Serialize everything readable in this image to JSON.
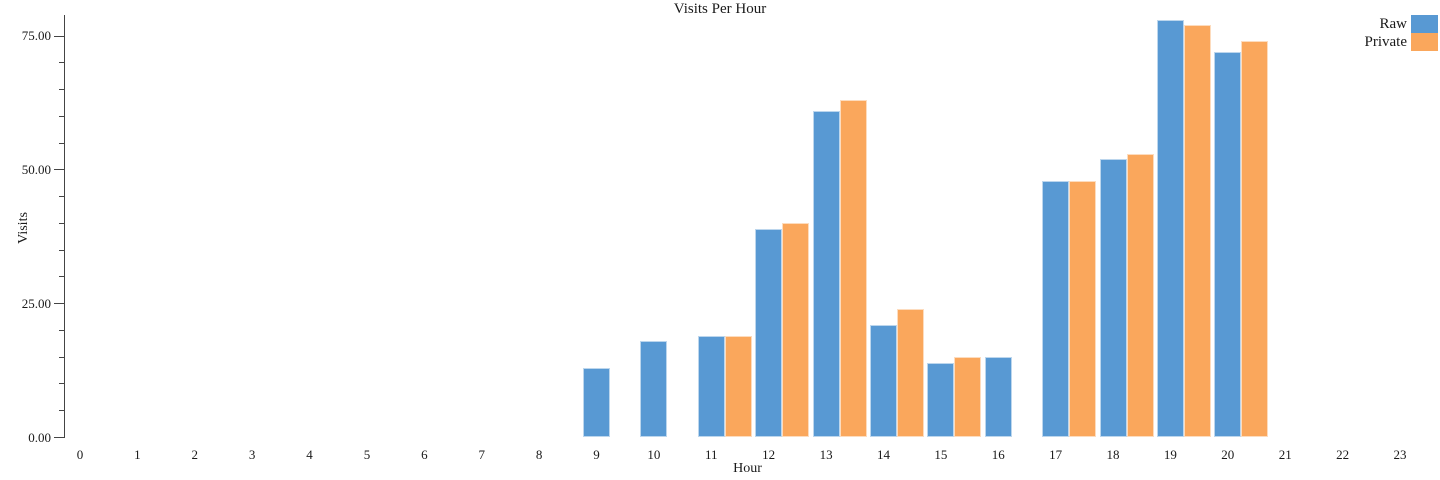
{
  "chart_data": {
    "type": "bar",
    "title": "Visits Per Hour",
    "xlabel": "Hour",
    "ylabel": "Visits",
    "x": [
      0,
      1,
      2,
      3,
      4,
      5,
      6,
      7,
      8,
      9,
      10,
      11,
      12,
      13,
      14,
      15,
      16,
      17,
      18,
      19,
      20,
      21,
      22,
      23
    ],
    "series": [
      {
        "name": "Raw",
        "color": "#5899d3",
        "values": [
          0,
          0,
          0,
          0,
          0,
          0,
          0,
          0,
          0,
          13,
          18,
          19,
          39,
          61,
          21,
          14,
          15,
          48,
          52,
          78,
          72,
          0,
          0,
          0
        ]
      },
      {
        "name": "Private",
        "color": "#faa75c",
        "values": [
          0,
          0,
          0,
          0,
          0,
          0,
          0,
          0,
          0,
          0,
          0,
          19,
          40,
          63,
          24,
          15,
          0,
          48,
          53,
          77,
          74,
          0,
          0,
          0
        ]
      }
    ],
    "ylim": [
      0,
      75
    ],
    "yticks": [
      {
        "value": 0,
        "label": "0.00"
      },
      {
        "value": 25,
        "label": "25.00"
      },
      {
        "value": 50,
        "label": "50.00"
      },
      {
        "value": 75,
        "label": "75.00"
      }
    ],
    "minor_tick_step": 5,
    "grid": false,
    "legend_position": "top-right",
    "note_missing_bars": "zero values are not drawn"
  }
}
